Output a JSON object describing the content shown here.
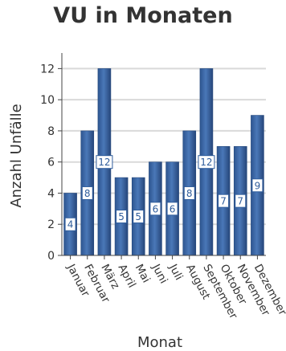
{
  "chart_data": {
    "type": "bar",
    "title": "VU in Monaten",
    "xlabel": "Monat",
    "ylabel": "Anzahl Unfälle",
    "categories": [
      "Januar",
      "Februar",
      "März",
      "April",
      "Mai",
      "Juni",
      "Juli",
      "August",
      "September",
      "Oktober",
      "November",
      "Dezember"
    ],
    "series": [
      {
        "name": "",
        "values": [
          4,
          8,
          12,
          5,
          5,
          6,
          6,
          8,
          12,
          7,
          7,
          9
        ]
      }
    ],
    "ylim": [
      0,
      13
    ],
    "yticks": [
      0,
      2,
      4,
      6,
      8,
      10,
      12
    ],
    "grid": true,
    "legend": "none",
    "data_labels": true,
    "colors": {
      "bar": "#3f6aa8",
      "bar_dark": "#274a7e",
      "grid": "#d9d9d9",
      "axis": "#444444",
      "label_box_border": "#2f5d9c",
      "label_text": "#2f5d9c"
    }
  }
}
